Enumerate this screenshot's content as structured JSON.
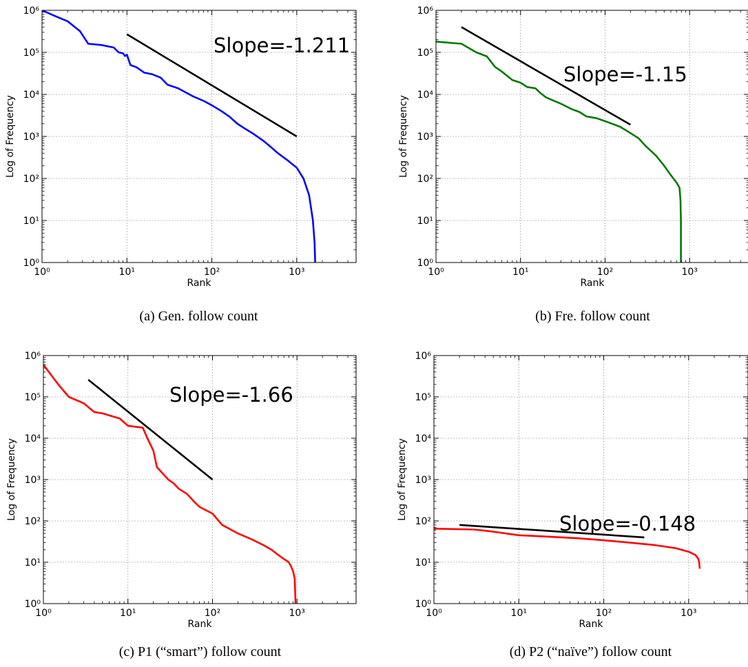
{
  "chart_data": [
    {
      "type": "line",
      "caption": "(a) Gen. follow count",
      "xlabel": "Rank",
      "ylabel": "Log of Frequency",
      "xscale": "log",
      "yscale": "log",
      "xlim": [
        1,
        5000
      ],
      "ylim": [
        1,
        1000000
      ],
      "xtick_labels": [
        "10^0",
        "10^1",
        "10^2",
        "10^3"
      ],
      "ytick_labels": [
        "10^0",
        "10^1",
        "10^2",
        "10^3",
        "10^4",
        "10^5",
        "10^6"
      ],
      "grid": true,
      "series": [
        {
          "color": "#0000ff",
          "x": [
            1,
            1.5,
            2,
            2.8,
            3.5,
            5,
            7,
            8,
            9,
            9.5,
            10,
            11,
            13,
            16,
            20,
            25,
            30,
            40,
            50,
            60,
            80,
            100,
            130,
            160,
            200,
            250,
            300,
            400,
            500,
            600,
            800,
            1000,
            1200,
            1400,
            1550,
            1620,
            1650
          ],
          "y": [
            1000000,
            700000,
            550000,
            320000,
            160000,
            150000,
            130000,
            100000,
            95000,
            82000,
            88000,
            50000,
            44000,
            33000,
            30000,
            25000,
            17000,
            14000,
            11000,
            9000,
            7000,
            5500,
            4000,
            3000,
            2000,
            1500,
            1200,
            800,
            550,
            400,
            260,
            180,
            100,
            40,
            10,
            3,
            1
          ]
        },
        {
          "color": "#000000",
          "x": [
            10,
            1000
          ],
          "y": [
            270000,
            1000
          ]
        }
      ],
      "annotations": [
        {
          "text": "Slope=-1.211"
        }
      ]
    },
    {
      "type": "line",
      "caption": "(b) Fre. follow count",
      "xlabel": "Rank",
      "ylabel": "Log of Frequency",
      "xscale": "log",
      "yscale": "log",
      "xlim": [
        1,
        5000
      ],
      "ylim": [
        1,
        1000000
      ],
      "xtick_labels": [
        "10^0",
        "10^1",
        "10^2",
        "10^3"
      ],
      "ytick_labels": [
        "10^0",
        "10^1",
        "10^2",
        "10^3",
        "10^4",
        "10^5",
        "10^6"
      ],
      "grid": true,
      "series": [
        {
          "color": "#007700",
          "x": [
            1,
            2,
            3,
            4,
            5,
            6,
            8,
            10,
            12,
            15,
            17,
            20,
            25,
            30,
            40,
            50,
            60,
            80,
            100,
            150,
            200,
            250,
            300,
            350,
            400,
            500,
            600,
            700,
            760,
            780,
            790,
            790
          ],
          "y": [
            180000,
            160000,
            100000,
            80000,
            45000,
            35000,
            22000,
            19000,
            15000,
            14000,
            11000,
            8500,
            7000,
            6000,
            4500,
            3800,
            3000,
            2700,
            2300,
            1700,
            1200,
            900,
            600,
            450,
            350,
            200,
            120,
            80,
            60,
            30,
            10,
            1
          ]
        },
        {
          "color": "#000000",
          "x": [
            2,
            200
          ],
          "y": [
            400000,
            1900
          ]
        }
      ],
      "annotations": [
        {
          "text": "Slope=-1.15"
        }
      ]
    },
    {
      "type": "line",
      "caption": "(c) P1 (“smart”) follow count",
      "xlabel": "Rank",
      "ylabel": "Log of Frequency",
      "xscale": "log",
      "yscale": "log",
      "xlim": [
        1,
        5000
      ],
      "ylim": [
        1,
        1000000
      ],
      "xtick_labels": [
        "10^0",
        "10^1",
        "10^2",
        "10^3"
      ],
      "ytick_labels": [
        "10^0",
        "10^1",
        "10^2",
        "10^3",
        "10^4",
        "10^5",
        "10^6"
      ],
      "grid": true,
      "series": [
        {
          "color": "#ff0000",
          "x": [
            1,
            1.5,
            2,
            3,
            4,
            5,
            8,
            10,
            15,
            17,
            20,
            22,
            25,
            30,
            35,
            40,
            50,
            60,
            70,
            100,
            130,
            200,
            300,
            400,
            500,
            600,
            700,
            800,
            850,
            900,
            940,
            950,
            960
          ],
          "y": [
            600000,
            200000,
            100000,
            70000,
            43000,
            40000,
            30000,
            20000,
            18000,
            10000,
            5000,
            2000,
            1500,
            1000,
            800,
            600,
            450,
            300,
            220,
            150,
            80,
            50,
            35,
            26,
            20,
            15,
            12,
            10,
            8,
            6,
            4,
            2,
            1
          ]
        },
        {
          "color": "#000000",
          "x": [
            3.4,
            100
          ],
          "y": [
            260000,
            1000
          ]
        }
      ],
      "annotations": [
        {
          "text": "Slope=-1.66"
        }
      ]
    },
    {
      "type": "line",
      "caption": "(d) P2 (“naïve”) follow count",
      "xlabel": "Rank",
      "ylabel": "Log of Frequency",
      "xscale": "log",
      "yscale": "log",
      "xlim": [
        1,
        5000
      ],
      "ylim": [
        1,
        1000000
      ],
      "xtick_labels": [
        "10^0",
        "10^1",
        "10^2",
        "10^3"
      ],
      "ytick_labels": [
        "10^0",
        "10^1",
        "10^2",
        "10^3",
        "10^4",
        "10^5",
        "10^6"
      ],
      "grid": true,
      "series": [
        {
          "color": "#ff0000",
          "x": [
            1,
            3,
            5,
            10,
            20,
            50,
            100,
            200,
            400,
            700,
            1000,
            1200,
            1300,
            1330,
            1350
          ],
          "y": [
            65,
            62,
            55,
            45,
            42,
            38,
            34,
            30,
            26,
            22,
            18,
            15,
            12,
            10,
            7
          ]
        },
        {
          "color": "#000000",
          "x": [
            2,
            300
          ],
          "y": [
            80,
            40
          ]
        }
      ],
      "annotations": [
        {
          "text": "Slope=-0.148"
        }
      ]
    }
  ]
}
